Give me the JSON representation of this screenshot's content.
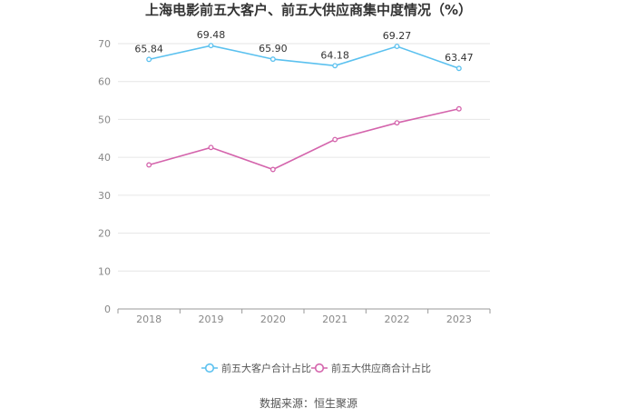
{
  "chart_data": {
    "type": "line",
    "title": "上海电影前五大客户、前五大供应商集中度情况（%）",
    "x": [
      "2018",
      "2019",
      "2020",
      "2021",
      "2022",
      "2023"
    ],
    "series": [
      {
        "name": "前五大客户合计占比",
        "values": [
          65.84,
          69.48,
          65.9,
          64.18,
          69.27,
          63.47
        ],
        "labels": [
          "65.84",
          "69.48",
          "65.90",
          "64.18",
          "69.27",
          "63.47"
        ],
        "color": "#5bc1ef",
        "show_labels": true
      },
      {
        "name": "前五大供应商合计占比",
        "values": [
          38.0,
          42.6,
          36.8,
          44.7,
          49.1,
          52.8
        ],
        "color": "#d464ac",
        "show_labels": false
      }
    ],
    "yticks": [
      "0",
      "10",
      "20",
      "30",
      "40",
      "50",
      "60",
      "70"
    ],
    "ylim": [
      0,
      70
    ],
    "grid": true,
    "legend": "bottom-center",
    "source": "数据来源：恒生聚源"
  }
}
